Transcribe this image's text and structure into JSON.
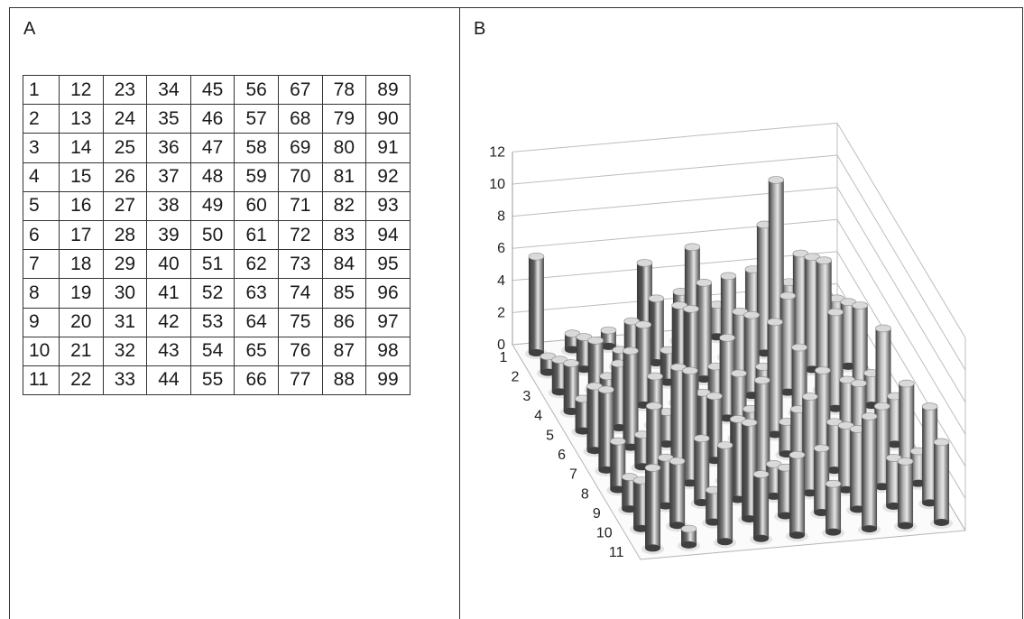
{
  "panel_a": {
    "label": "A",
    "rows": [
      [
        "1",
        "12",
        "23",
        "34",
        "45",
        "56",
        "67",
        "78",
        "89"
      ],
      [
        "2",
        "13",
        "24",
        "35",
        "46",
        "57",
        "68",
        "79",
        "90"
      ],
      [
        "3",
        "14",
        "25",
        "36",
        "47",
        "58",
        "69",
        "80",
        "91"
      ],
      [
        "4",
        "15",
        "26",
        "37",
        "48",
        "59",
        "70",
        "81",
        "92"
      ],
      [
        "5",
        "16",
        "27",
        "38",
        "49",
        "60",
        "71",
        "82",
        "93"
      ],
      [
        "6",
        "17",
        "28",
        "39",
        "50",
        "61",
        "72",
        "83",
        "94"
      ],
      [
        "7",
        "18",
        "29",
        "40",
        "51",
        "62",
        "73",
        "84",
        "95"
      ],
      [
        "8",
        "19",
        "30",
        "41",
        "52",
        "63",
        "74",
        "85",
        "96"
      ],
      [
        "9",
        "20",
        "31",
        "42",
        "53",
        "64",
        "75",
        "86",
        "97"
      ],
      [
        "10",
        "21",
        "32",
        "43",
        "54",
        "65",
        "76",
        "87",
        "98"
      ],
      [
        "11",
        "22",
        "33",
        "44",
        "55",
        "66",
        "77",
        "88",
        "99"
      ]
    ]
  },
  "panel_b": {
    "label": "B",
    "chart_data": {
      "type": "bar",
      "subtype": "3d-cylinder",
      "z_ticks": [
        "0",
        "2",
        "4",
        "6",
        "8",
        "10",
        "12"
      ],
      "zlim": [
        0,
        12
      ],
      "row_ticks": [
        "1",
        "2",
        "3",
        "4",
        "5",
        "6",
        "7",
        "8",
        "9",
        "10",
        "11"
      ],
      "grid": true,
      "column_colors": [
        "#5e5e5e",
        "#6b6b6b",
        "#7a7a7a",
        "#555555",
        "#8c8c8c",
        "#9b9b9b",
        "#a6a6a6",
        "#b2b2b2",
        "#bdbdbd"
      ],
      "values": [
        [
          6,
          1,
          1,
          5,
          3,
          2,
          4,
          3,
          2
        ],
        [
          1,
          2,
          1,
          4,
          7,
          5,
          8,
          6,
          3
        ],
        [
          2,
          3,
          4,
          2,
          6,
          4,
          12,
          7,
          4
        ],
        [
          3,
          2,
          5,
          6,
          2,
          5,
          6,
          8,
          5
        ],
        [
          2,
          4,
          3,
          7,
          5,
          3,
          4,
          6,
          2
        ],
        [
          4,
          6,
          2,
          3,
          4,
          7,
          2,
          3,
          6
        ],
        [
          5,
          2,
          6,
          4,
          3,
          2,
          5,
          4,
          3
        ],
        [
          3,
          5,
          7,
          2,
          6,
          4,
          3,
          2,
          5
        ],
        [
          2,
          3,
          4,
          5,
          2,
          6,
          4,
          5,
          2
        ],
        [
          3,
          4,
          2,
          6,
          3,
          4,
          5,
          3,
          6
        ],
        [
          5,
          1,
          6,
          4,
          5,
          3,
          7,
          4,
          5
        ]
      ]
    }
  }
}
